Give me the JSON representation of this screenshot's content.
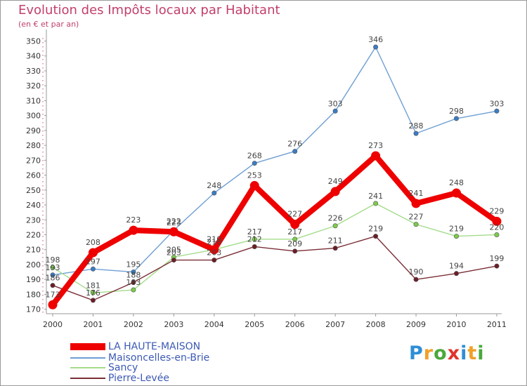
{
  "header": {
    "title": "Evolution des Impôts locaux par Habitant",
    "subtitle": "(en € et par an)"
  },
  "logo": {
    "letters": [
      "P",
      "r",
      "o",
      "x",
      "i",
      "t",
      "i"
    ],
    "colors": [
      "#2e8ed6",
      "#f0a12a",
      "#4aa83c",
      "#e0332c",
      "#2e8ed6",
      "#f0a12a",
      "#4aa83c"
    ]
  },
  "chart_data": {
    "type": "line",
    "title": "Evolution des Impôts locaux par Habitant",
    "subtitle": "(en € et par an)",
    "xlabel": "",
    "ylabel": "",
    "categories": [
      "2000",
      "2001",
      "2002",
      "2003",
      "2004",
      "2005",
      "2006",
      "2007",
      "2008",
      "2009",
      "2010",
      "2011"
    ],
    "yticks": [
      170,
      180,
      190,
      200,
      210,
      220,
      230,
      240,
      250,
      260,
      270,
      280,
      290,
      300,
      310,
      320,
      330,
      340,
      350
    ],
    "ylim": [
      167,
      354
    ],
    "grid": false,
    "legend_position": "bottom-left",
    "series": [
      {
        "name": "Maisoncelles-en-Brie",
        "values": [
          193,
          197,
          195,
          223,
          248,
          268,
          276,
          303,
          346,
          288,
          298,
          303
        ],
        "color": "#6e9fd3",
        "marker": "#3a7cc4",
        "emphasis": false
      },
      {
        "name": "Sancy",
        "values": [
          198,
          181,
          183,
          205,
          210,
          217,
          217,
          226,
          241,
          227,
          219,
          220
        ],
        "color": "#a4dc8a",
        "marker": "#7ccc4a",
        "emphasis": false
      },
      {
        "name": "Pierre-Levée",
        "values": [
          186,
          176,
          188,
          203,
          203,
          212,
          209,
          211,
          219,
          190,
          194,
          199
        ],
        "color": "#7a2e36",
        "marker": "#6a1e26",
        "emphasis": false
      },
      {
        "name": "LA HAUTE-MAISON",
        "values": [
          173,
          208,
          223,
          222,
          210,
          253,
          227,
          249,
          273,
          241,
          248,
          229
        ],
        "color": "#ee0000",
        "marker": "#ee0000",
        "emphasis": true
      }
    ],
    "data_labels": [
      {
        "series": "Maisoncelles-en-Brie",
        "labels": [
          "193",
          "197",
          "195",
          "223",
          "248",
          "268",
          "276",
          "303",
          "346",
          "288",
          "298",
          "303"
        ]
      },
      {
        "series": "Sancy",
        "labels": [
          "198",
          "181",
          "183",
          "205",
          "210",
          "217",
          "217",
          "226",
          "241",
          "227",
          "219",
          "220"
        ]
      },
      {
        "series": "Pierre-Levée",
        "labels": [
          "186",
          "176",
          "188",
          "203",
          "203",
          "212",
          "209",
          "211",
          "219",
          "190",
          "194",
          "199"
        ]
      },
      {
        "series": "LA HAUTE-MAISON",
        "labels": [
          "173",
          "208",
          "223",
          "222",
          "210",
          "253",
          "227",
          "249",
          "273",
          "241",
          "248",
          "229"
        ]
      }
    ],
    "legend": [
      "LA HAUTE-MAISON",
      "Maisoncelles-en-Brie",
      "Sancy",
      "Pierre-Levée"
    ]
  }
}
